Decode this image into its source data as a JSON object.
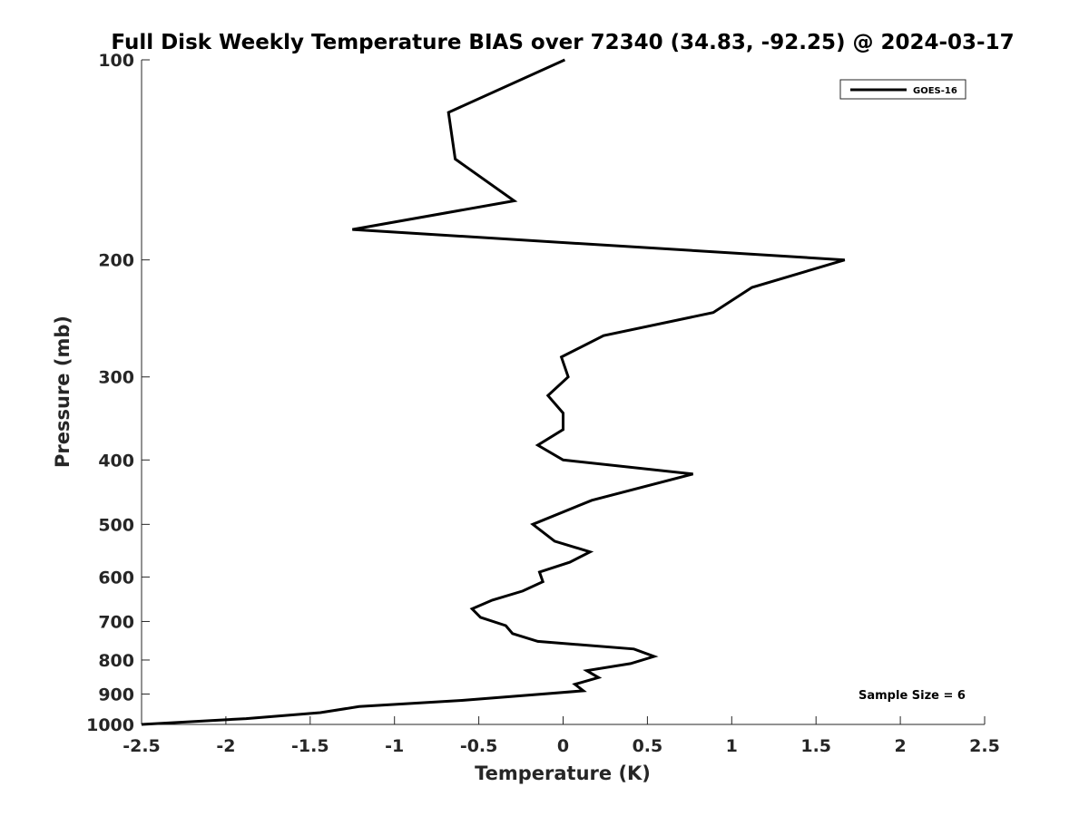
{
  "chart_data": {
    "type": "line",
    "title": "Full Disk Weekly Temperature BIAS over 72340 (34.83, -92.25) @ 2024-03-17",
    "xlabel": "Temperature (K)",
    "ylabel": "Pressure (mb)",
    "xlim": [
      -2.5,
      2.5
    ],
    "ylim": [
      100,
      1000
    ],
    "y_scale": "log",
    "y_reversed": true,
    "x_ticks": [
      "-2.5",
      "-2",
      "-1.5",
      "-1",
      "-0.5",
      "0",
      "0.5",
      "1",
      "1.5",
      "2",
      "2.5"
    ],
    "x_tick_values": [
      -2.5,
      -2,
      -1.5,
      -1,
      -0.5,
      0,
      0.5,
      1,
      1.5,
      2,
      2.5
    ],
    "y_ticks": [
      "100",
      "200",
      "300",
      "400",
      "500",
      "600",
      "700",
      "800",
      "900",
      "1000"
    ],
    "y_tick_values": [
      100,
      200,
      300,
      400,
      500,
      600,
      700,
      800,
      900,
      1000
    ],
    "grid": false,
    "legend_position": "top-right",
    "annotation": "Sample Size = 6",
    "series": [
      {
        "name": "GOES-16",
        "color": "#000000",
        "points": [
          {
            "x": 0.01,
            "y": 100
          },
          {
            "x": -0.68,
            "y": 120
          },
          {
            "x": -0.64,
            "y": 141
          },
          {
            "x": -0.29,
            "y": 163
          },
          {
            "x": -1.25,
            "y": 180
          },
          {
            "x": 1.67,
            "y": 200
          },
          {
            "x": 1.12,
            "y": 220
          },
          {
            "x": 0.89,
            "y": 240
          },
          {
            "x": 0.24,
            "y": 260
          },
          {
            "x": -0.01,
            "y": 280
          },
          {
            "x": 0.03,
            "y": 300
          },
          {
            "x": -0.09,
            "y": 320
          },
          {
            "x": 0.0,
            "y": 340
          },
          {
            "x": 0.0,
            "y": 360
          },
          {
            "x": -0.15,
            "y": 380
          },
          {
            "x": 0.0,
            "y": 400
          },
          {
            "x": 0.77,
            "y": 420
          },
          {
            "x": 0.17,
            "y": 460
          },
          {
            "x": -0.18,
            "y": 500
          },
          {
            "x": -0.05,
            "y": 530
          },
          {
            "x": 0.16,
            "y": 550
          },
          {
            "x": 0.04,
            "y": 570
          },
          {
            "x": -0.14,
            "y": 590
          },
          {
            "x": -0.12,
            "y": 610
          },
          {
            "x": -0.24,
            "y": 630
          },
          {
            "x": -0.42,
            "y": 650
          },
          {
            "x": -0.54,
            "y": 670
          },
          {
            "x": -0.49,
            "y": 690
          },
          {
            "x": -0.34,
            "y": 710
          },
          {
            "x": -0.3,
            "y": 730
          },
          {
            "x": -0.15,
            "y": 750
          },
          {
            "x": 0.42,
            "y": 770
          },
          {
            "x": 0.54,
            "y": 790
          },
          {
            "x": 0.4,
            "y": 810
          },
          {
            "x": 0.14,
            "y": 830
          },
          {
            "x": 0.21,
            "y": 850
          },
          {
            "x": 0.07,
            "y": 870
          },
          {
            "x": 0.12,
            "y": 890
          },
          {
            "x": -0.6,
            "y": 920
          },
          {
            "x": -1.21,
            "y": 940
          },
          {
            "x": -1.44,
            "y": 960
          },
          {
            "x": -1.88,
            "y": 980
          },
          {
            "x": -2.5,
            "y": 1000
          }
        ]
      }
    ]
  }
}
